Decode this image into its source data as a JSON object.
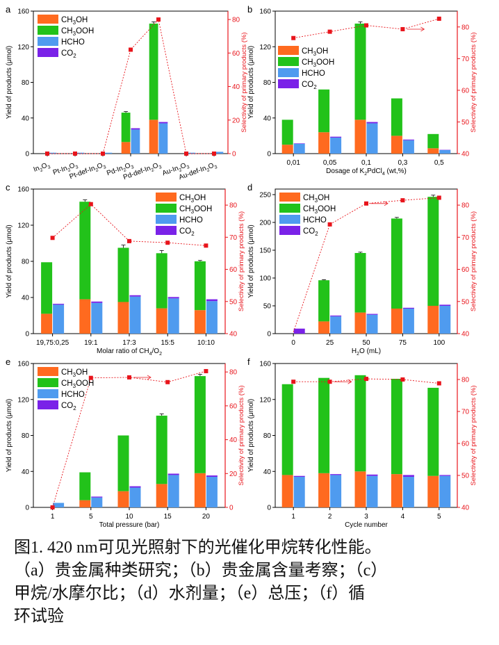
{
  "colors": {
    "ch3oh": "#FF6A1F",
    "ch3ooh": "#22C21A",
    "hcho": "#4F9BEF",
    "co2": "#7A22E8",
    "sel": "#E8141B"
  },
  "legend": [
    "CH3OH",
    "CH3OOH",
    "HCHO",
    "CO2"
  ],
  "legend_rich": [
    [
      "CH",
      "3",
      "OH"
    ],
    [
      "CH",
      "3",
      "OOH"
    ],
    [
      "HCHO"
    ],
    [
      "CO",
      "2"
    ]
  ],
  "axis": {
    "yleft": "Yield of products (μmol)",
    "yright": "Selectivity of primary products (%)"
  },
  "caption": {
    "line1": "图1. 420 nm可见光照射下的光催化甲烷转化性能。",
    "line2": "（a）贵金属种类研究；（b）贵金属含量考察；（c）",
    "line3": "甲烷/水摩尔比；（d）水剂量；（e）总压；（f）循",
    "line4": "环试验"
  },
  "chart_data": [
    {
      "panel": "a",
      "type": "bar",
      "categories": [
        "In2O3",
        "Pt-In2O3",
        "Pt-def-In2O3",
        "Pd-In2O3",
        "Pd-def-In2O3",
        "Au-In2O3",
        "Au-def-In2O3"
      ],
      "category_labels": [
        [
          "In",
          "2",
          "O",
          "3"
        ],
        [
          "Pt-In",
          "2",
          "O",
          "3"
        ],
        [
          "Pt-def-In",
          "2",
          "O",
          "3"
        ],
        [
          "Pd-In",
          "2",
          "O",
          "3"
        ],
        [
          "Pd-def-In",
          "2",
          "O",
          "3"
        ],
        [
          "Au-In",
          "2",
          "O",
          "3"
        ],
        [
          "Au-def-In",
          "2",
          "O",
          "3"
        ]
      ],
      "xlabel": "",
      "ylim": [
        0,
        160
      ],
      "yticks": [
        0,
        40,
        80,
        120,
        160
      ],
      "y2lim": [
        0,
        85
      ],
      "y2ticks": [
        0,
        20,
        40,
        60,
        80
      ],
      "ch3oh": [
        0,
        0,
        0,
        13,
        38,
        0,
        0
      ],
      "ch3ooh": [
        0,
        0,
        0,
        33,
        108,
        0,
        0
      ],
      "hcho": [
        1,
        1,
        1,
        27,
        34,
        1,
        2
      ],
      "co2": [
        0,
        0,
        0,
        1.5,
        1.5,
        0,
        0
      ],
      "hcho_err": [
        0,
        0,
        0,
        1,
        1,
        0,
        0
      ],
      "total_err": [
        0,
        0,
        0,
        1.2,
        2,
        0,
        0
      ],
      "selectivity": [
        0,
        0,
        0,
        62,
        80,
        0,
        0
      ],
      "legend_pos": "top-left"
    },
    {
      "panel": "b",
      "type": "bar",
      "categories": [
        "0,01",
        "0,05",
        "0,1",
        "0,3",
        "0,5"
      ],
      "xlabel_parts": [
        "Dosage of K",
        "2",
        "PdCl",
        "4",
        " (wt,%)"
      ],
      "ylim": [
        0,
        160
      ],
      "yticks": [
        0,
        40,
        80,
        120,
        160
      ],
      "y2lim": [
        40,
        85
      ],
      "y2ticks": [
        40,
        50,
        60,
        70,
        80
      ],
      "ch3oh": [
        10,
        24,
        38,
        20,
        6
      ],
      "ch3ooh": [
        28,
        48,
        108,
        42,
        16
      ],
      "hcho": [
        11,
        18,
        34,
        15,
        4
      ],
      "co2": [
        0.5,
        1,
        1.5,
        0.8,
        0.3
      ],
      "hcho_err": [
        0,
        0,
        1,
        0,
        0
      ],
      "total_err": [
        0,
        0,
        2,
        0,
        0
      ],
      "selectivity": [
        76.5,
        78.5,
        80.5,
        79.3,
        82.6
      ],
      "arrow_after": 3,
      "legend_pos": "left"
    },
    {
      "panel": "c",
      "type": "bar",
      "categories": [
        "19,75:0,25",
        "19:1",
        "17:3",
        "15:5",
        "10:10"
      ],
      "xlabel_parts": [
        "Molar ratio of CH",
        "4",
        "/O",
        "2",
        ""
      ],
      "ylim": [
        0,
        160
      ],
      "yticks": [
        0,
        40,
        80,
        120,
        160
      ],
      "y2lim": [
        40,
        85
      ],
      "y2ticks": [
        40,
        50,
        60,
        70,
        80
      ],
      "ch3oh": [
        22,
        38,
        35,
        28,
        26
      ],
      "ch3ooh": [
        57,
        108,
        60,
        61,
        54
      ],
      "hcho": [
        32,
        34,
        41,
        39,
        36
      ],
      "co2": [
        1,
        1.5,
        1.5,
        1.5,
        2
      ],
      "hcho_err": [
        0,
        1,
        0,
        0,
        0
      ],
      "total_err": [
        0,
        2,
        3,
        3,
        1
      ],
      "selectivity": [
        69.8,
        80.3,
        68.8,
        68.3,
        67.4
      ],
      "legend_pos": "top-right"
    },
    {
      "panel": "d",
      "type": "bar",
      "categories": [
        "0",
        "25",
        "50",
        "75",
        "100"
      ],
      "xlabel_parts": [
        "H",
        "2",
        "O (mL)",
        "",
        ""
      ],
      "ylim": [
        0,
        260
      ],
      "yticks": [
        0,
        50,
        100,
        150,
        200,
        250
      ],
      "y2lim": [
        40,
        85
      ],
      "y2ticks": [
        40,
        50,
        60,
        70,
        80
      ],
      "ch3oh": [
        0,
        22,
        38,
        45,
        50
      ],
      "ch3ooh": [
        0,
        74,
        107,
        162,
        196
      ],
      "hcho": [
        0,
        31,
        34,
        45,
        50
      ],
      "co2": [
        9,
        1.5,
        1.5,
        1.5,
        2
      ],
      "hcho_err": [
        0,
        0,
        0,
        0,
        0
      ],
      "total_err": [
        0,
        1,
        1.5,
        2,
        3
      ],
      "selectivity": [
        null,
        74,
        80.5,
        81.5,
        82.3
      ],
      "sel_line_start": [
        0,
        40.5
      ],
      "arrow_after": 2,
      "legend_pos": "top-left"
    },
    {
      "panel": "e",
      "type": "bar",
      "categories": [
        "1",
        "5",
        "10",
        "15",
        "20"
      ],
      "xlabel": "Total pressure (bar)",
      "ylim": [
        0,
        160
      ],
      "yticks": [
        0,
        40,
        80,
        120,
        160
      ],
      "y2lim": [
        0,
        85
      ],
      "y2ticks": [
        0,
        20,
        40,
        60,
        80
      ],
      "ch3oh": [
        0,
        8,
        18,
        26,
        38
      ],
      "ch3ooh": [
        0,
        31,
        62,
        76,
        108
      ],
      "hcho": [
        5,
        11,
        22,
        36,
        34
      ],
      "co2": [
        0,
        1,
        1.5,
        1.5,
        1.5
      ],
      "hcho_err": [
        0,
        0,
        0,
        0,
        0
      ],
      "total_err": [
        0,
        0,
        0,
        2,
        2
      ],
      "selectivity": [
        0,
        76.5,
        76.8,
        74,
        80.5
      ],
      "arrow_after": 2,
      "legend_pos": "top-left"
    },
    {
      "panel": "f",
      "type": "bar",
      "categories": [
        "1",
        "2",
        "3",
        "4",
        "5"
      ],
      "xlabel": "Cycle number",
      "ylim": [
        0,
        160
      ],
      "yticks": [
        0,
        40,
        80,
        120,
        160
      ],
      "y2lim": [
        40,
        85
      ],
      "y2ticks": [
        40,
        50,
        60,
        70,
        80
      ],
      "ch3oh": [
        36,
        38,
        40,
        37,
        35
      ],
      "ch3ooh": [
        101,
        106,
        107,
        106,
        98
      ],
      "hcho": [
        34,
        36,
        35,
        34,
        35
      ],
      "co2": [
        1,
        1,
        1.5,
        2,
        1
      ],
      "hcho_err": [
        0,
        0,
        0,
        0,
        0
      ],
      "total_err": [
        0,
        0,
        0,
        0,
        0
      ],
      "selectivity": [
        79.3,
        79.3,
        80.2,
        80,
        78.8
      ],
      "arrow_after": 1,
      "legend_pos": "none"
    }
  ]
}
